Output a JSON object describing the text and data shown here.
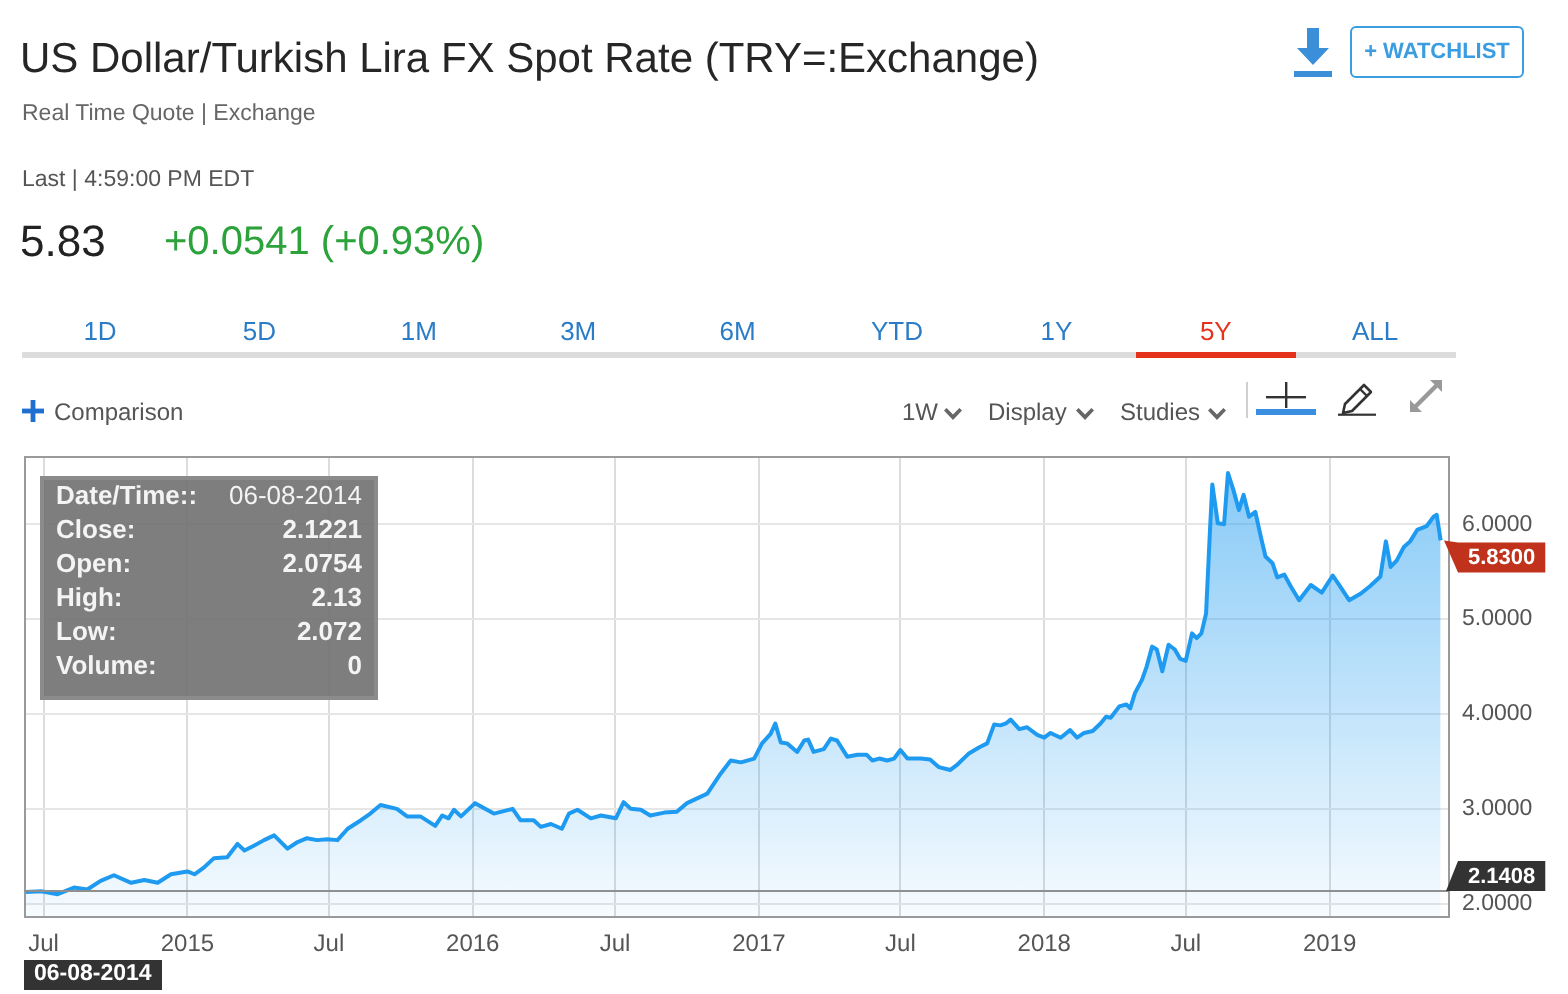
{
  "chart_data": {
    "type": "area",
    "title": "US Dollar/Turkish Lira FX Spot Rate (TRY=:Exchange)",
    "subtitle": "Real Time Quote | Exchange",
    "annotations": [
      "Last | 4:59:00 PM EDT",
      "5.83",
      "+0.0541 (+0.93%)",
      "1D",
      "5D",
      "1M",
      "3M",
      "6M",
      "YTD",
      "1Y",
      "5Y",
      "ALL",
      "+ WATCHLIST",
      "Comparison",
      "1W",
      "Display",
      "Studies",
      "Date/Time::",
      "06-08-2014",
      "Close:",
      "2.1221",
      "Open:",
      "2.0754",
      "High:",
      "2.13",
      "Low:",
      "2.072",
      "Volume:",
      "0",
      {
        "text": "5.8300",
        "x": "2019-05-23",
        "y": 5.83
      },
      "06-08-2014"
    ],
    "x": [
      "2014-06-08",
      "2014-06-28",
      "2014-07-19",
      "2014-08-09",
      "2014-08-26",
      "2014-09-12",
      "2014-09-29",
      "2014-10-21",
      "2014-11-07",
      "2014-11-24",
      "2014-12-11",
      "2015-01-01",
      "2015-01-10",
      "2015-01-22",
      "2015-02-04",
      "2015-02-21",
      "2015-03-06",
      "2015-03-15",
      "2015-03-27",
      "2015-04-09",
      "2015-04-22",
      "2015-05-09",
      "2015-05-22",
      "2015-06-03",
      "2015-06-16",
      "2015-06-29",
      "2015-07-12",
      "2015-07-25",
      "2015-08-11",
      "2015-08-23",
      "2015-09-05",
      "2015-09-26",
      "2015-10-09",
      "2015-10-26",
      "2015-11-14",
      "2015-11-23",
      "2015-12-01",
      "2015-12-08",
      "2015-12-17",
      "2016-01-04",
      "2016-01-28",
      "2016-02-21",
      "2016-03-02",
      "2016-03-19",
      "2016-03-28",
      "2016-04-10",
      "2016-04-24",
      "2016-05-03",
      "2016-05-14",
      "2016-05-31",
      "2016-06-13",
      "2016-07-02",
      "2016-07-12",
      "2016-07-21",
      "2016-08-03",
      "2016-08-15",
      "2016-09-02",
      "2016-09-18",
      "2016-10-01",
      "2016-10-14",
      "2016-10-27",
      "2016-11-13",
      "2016-11-26",
      "2016-12-09",
      "2016-12-26",
      "2017-01-05",
      "2017-01-16",
      "2017-01-22",
      "2017-01-29",
      "2017-02-06",
      "2017-02-19",
      "2017-02-28",
      "2017-03-05",
      "2017-03-12",
      "2017-03-25",
      "2017-04-03",
      "2017-04-11",
      "2017-04-24",
      "2017-05-07",
      "2017-05-19",
      "2017-05-26",
      "2017-06-04",
      "2017-06-14",
      "2017-06-23",
      "2017-07-01",
      "2017-07-10",
      "2017-07-27",
      "2017-08-08",
      "2017-08-19",
      "2017-09-03",
      "2017-09-11",
      "2017-09-26",
      "2017-10-10",
      "2017-10-20",
      "2017-10-29",
      "2017-11-06",
      "2017-11-13",
      "2017-11-19",
      "2017-11-30",
      "2017-12-10",
      "2017-12-23",
      "2018-01-01",
      "2018-01-09",
      "2018-01-22",
      "2018-02-03",
      "2018-02-12",
      "2018-02-21",
      "2018-03-04",
      "2018-03-14",
      "2018-03-21",
      "2018-03-27",
      "2018-04-07",
      "2018-04-16",
      "2018-04-21",
      "2018-04-27",
      "2018-05-06",
      "2018-05-12",
      "2018-05-19",
      "2018-05-25",
      "2018-06-01",
      "2018-06-09",
      "2018-06-17",
      "2018-06-24",
      "2018-07-01",
      "2018-07-09",
      "2018-07-15",
      "2018-07-21",
      "2018-07-27",
      "2018-08-01",
      "2018-08-04",
      "2018-08-11",
      "2018-08-19",
      "2018-08-24",
      "2018-08-31",
      "2018-09-07",
      "2018-09-13",
      "2018-09-20",
      "2018-09-28",
      "2018-10-05",
      "2018-10-11",
      "2018-10-20",
      "2018-10-26",
      "2018-11-04",
      "2018-11-12",
      "2018-11-23",
      "2018-12-08",
      "2018-12-22",
      "2019-01-05",
      "2019-01-14",
      "2019-01-26",
      "2019-02-10",
      "2019-02-22",
      "2019-03-07",
      "2019-03-14",
      "2019-03-20",
      "2019-03-28",
      "2019-04-06",
      "2019-04-14",
      "2019-04-23",
      "2019-05-05",
      "2019-05-14",
      "2019-05-18",
      "2019-05-23"
    ],
    "values": [
      2.1221,
      2.13,
      2.1,
      2.17,
      2.15,
      2.24,
      2.3,
      2.22,
      2.25,
      2.22,
      2.31,
      2.34,
      2.31,
      2.38,
      2.48,
      2.49,
      2.63,
      2.56,
      2.61,
      2.67,
      2.72,
      2.58,
      2.65,
      2.69,
      2.67,
      2.68,
      2.67,
      2.79,
      2.88,
      2.95,
      3.04,
      3.0,
      2.92,
      2.92,
      2.82,
      2.93,
      2.9,
      2.99,
      2.92,
      3.06,
      2.95,
      3.0,
      2.88,
      2.88,
      2.81,
      2.84,
      2.79,
      2.95,
      2.99,
      2.9,
      2.93,
      2.9,
      3.07,
      3.0,
      2.99,
      2.93,
      2.96,
      2.97,
      3.06,
      3.11,
      3.16,
      3.37,
      3.51,
      3.49,
      3.53,
      3.69,
      3.79,
      3.9,
      3.7,
      3.69,
      3.6,
      3.72,
      3.73,
      3.6,
      3.63,
      3.74,
      3.72,
      3.55,
      3.57,
      3.57,
      3.51,
      3.53,
      3.51,
      3.53,
      3.62,
      3.53,
      3.53,
      3.52,
      3.44,
      3.41,
      3.46,
      3.58,
      3.65,
      3.69,
      3.89,
      3.88,
      3.9,
      3.94,
      3.84,
      3.86,
      3.78,
      3.75,
      3.8,
      3.75,
      3.83,
      3.75,
      3.8,
      3.82,
      3.9,
      3.97,
      3.96,
      4.08,
      4.1,
      4.06,
      4.22,
      4.36,
      4.5,
      4.71,
      4.68,
      4.45,
      4.73,
      4.68,
      4.58,
      4.56,
      4.85,
      4.8,
      4.85,
      5.06,
      5.94,
      6.42,
      6.01,
      6.0,
      6.54,
      6.36,
      6.15,
      6.31,
      6.08,
      6.13,
      5.87,
      5.66,
      5.59,
      5.44,
      5.47,
      5.35,
      5.2,
      5.36,
      5.28,
      5.46,
      5.35,
      5.2,
      5.27,
      5.35,
      5.45,
      5.82,
      5.55,
      5.62,
      5.76,
      5.82,
      5.94,
      5.98,
      6.08,
      6.1,
      5.83
    ],
    "color": "#1e9bf0",
    "xlim": [
      "2014-06-06",
      "2019-06-04"
    ],
    "xticks": [
      {
        "value": "2014-07-01",
        "label": "Jul"
      },
      {
        "value": "2015-01-01",
        "label": "2015"
      },
      {
        "value": "2015-07-01",
        "label": "Jul"
      },
      {
        "value": "2016-01-01",
        "label": "2016"
      },
      {
        "value": "2016-07-01",
        "label": "Jul"
      },
      {
        "value": "2017-01-01",
        "label": "2017"
      },
      {
        "value": "2017-07-01",
        "label": "Jul"
      },
      {
        "value": "2018-01-01",
        "label": "2018"
      },
      {
        "value": "2018-07-01",
        "label": "Jul"
      },
      {
        "value": "2019-01-01",
        "label": "2019"
      }
    ],
    "ylim": [
      1.87,
      6.72
    ],
    "yticks": [
      {
        "value": 2,
        "label": "2.0000"
      },
      {
        "value": 3,
        "label": "3.0000"
      },
      {
        "value": 4,
        "label": "4.0000"
      },
      {
        "value": 5,
        "label": "5.0000"
      },
      {
        "value": 6,
        "label": "6.0000"
      }
    ],
    "grid": true,
    "ref_lines": [
      {
        "axis": "y",
        "value": 2.1408,
        "label": "2.1408"
      }
    ]
  }
}
